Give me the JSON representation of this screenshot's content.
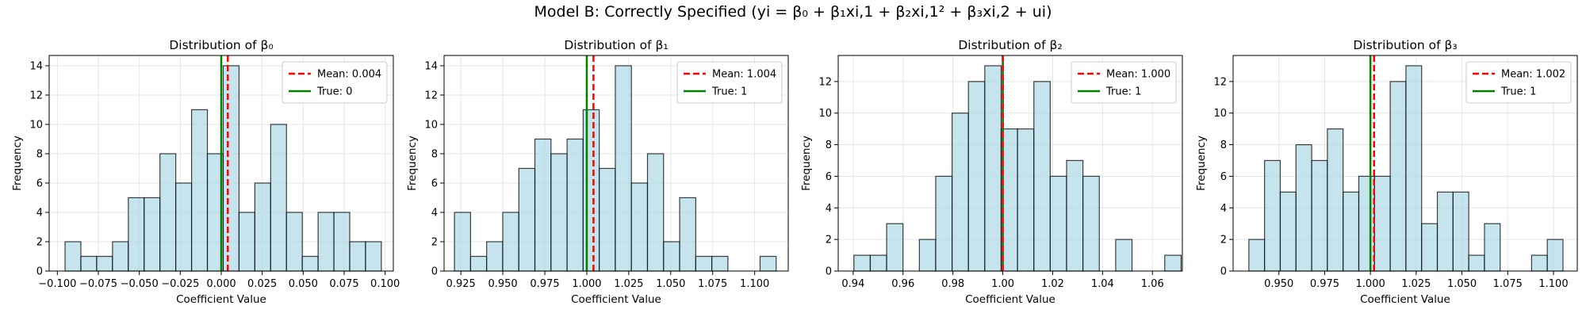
{
  "suptitle": "Model B: Correctly Specified (yi = β₀ + β₁xi,1 + β₂xi,1² + β₃xi,2 + ui)",
  "chart_data": [
    {
      "type": "histogram",
      "title": "Distribution of β₀",
      "xlabel": "Coefficient Value",
      "ylabel": "Frequency",
      "xlim": [
        -0.105,
        0.105
      ],
      "ylim": [
        0,
        14.7
      ],
      "xticks": [
        -0.1,
        -0.075,
        -0.05,
        -0.025,
        0.0,
        0.025,
        0.05,
        0.075,
        0.1
      ],
      "xtick_labels": [
        "−0.100",
        "−0.075",
        "−0.050",
        "−0.025",
        "0.000",
        "0.025",
        "0.050",
        "0.075",
        "0.100"
      ],
      "yticks": [
        0,
        2,
        4,
        6,
        8,
        10,
        12,
        14
      ],
      "bin_start": -0.0953,
      "bin_width": 0.00965,
      "counts": [
        2,
        1,
        1,
        2,
        5,
        5,
        8,
        6,
        11,
        8,
        14,
        4,
        6,
        10,
        4,
        1,
        4,
        4,
        2,
        2
      ],
      "mean": 0.004,
      "true": 0,
      "legend": [
        "Mean: 0.004",
        "True: 0"
      ],
      "legend_position": "top-right",
      "grid": true
    },
    {
      "type": "histogram",
      "title": "Distribution of β₁",
      "xlabel": "Coefficient Value",
      "ylabel": "Frequency",
      "xlim": [
        0.915,
        1.12
      ],
      "ylim": [
        0,
        14.7
      ],
      "xticks": [
        0.925,
        0.95,
        0.975,
        1.0,
        1.025,
        1.05,
        1.075,
        1.1
      ],
      "xtick_labels": [
        "0.925",
        "0.950",
        "0.975",
        "1.000",
        "1.025",
        "1.050",
        "1.075",
        "1.100"
      ],
      "yticks": [
        0,
        2,
        4,
        6,
        8,
        10,
        12,
        14
      ],
      "bin_start": 0.9212,
      "bin_width": 0.00958,
      "counts": [
        4,
        1,
        2,
        4,
        7,
        9,
        8,
        9,
        11,
        7,
        14,
        6,
        8,
        2,
        5,
        1,
        1,
        0,
        0,
        1
      ],
      "mean": 1.004,
      "true": 1,
      "legend": [
        "Mean: 1.004",
        "True: 1"
      ],
      "legend_position": "top-right",
      "grid": true
    },
    {
      "type": "histogram",
      "title": "Distribution of β₂",
      "xlabel": "Coefficient Value",
      "ylabel": "Frequency",
      "xlim": [
        0.934,
        1.072
      ],
      "ylim": [
        0,
        13.65
      ],
      "xticks": [
        0.94,
        0.96,
        0.98,
        1.0,
        1.02,
        1.04,
        1.06
      ],
      "xtick_labels": [
        "0.94",
        "0.96",
        "0.98",
        "1.00",
        "1.02",
        "1.04",
        "1.06"
      ],
      "yticks": [
        0,
        2,
        4,
        6,
        8,
        10,
        12
      ],
      "bin_start": 0.9403,
      "bin_width": 0.00656,
      "counts": [
        1,
        1,
        3,
        0,
        2,
        6,
        10,
        12,
        13,
        9,
        9,
        12,
        6,
        7,
        6,
        0,
        2,
        0,
        0,
        1
      ],
      "mean": 1.0,
      "true": 1,
      "legend": [
        "Mean: 1.000",
        "True: 1"
      ],
      "legend_position": "top-right",
      "grid": true
    },
    {
      "type": "histogram",
      "title": "Distribution of β₃",
      "xlabel": "Coefficient Value",
      "ylabel": "Frequency",
      "xlim": [
        0.925,
        1.113
      ],
      "ylim": [
        0,
        13.65
      ],
      "xticks": [
        0.95,
        0.975,
        1.0,
        1.025,
        1.05,
        1.075,
        1.1
      ],
      "xtick_labels": [
        "0.950",
        "0.975",
        "1.000",
        "1.025",
        "1.050",
        "1.075",
        "1.100"
      ],
      "yticks": [
        0,
        2,
        4,
        6,
        8,
        10,
        12
      ],
      "bin_start": 0.9336,
      "bin_width": 0.00858,
      "counts": [
        2,
        7,
        5,
        8,
        7,
        9,
        5,
        6,
        6,
        12,
        13,
        3,
        5,
        5,
        1,
        3,
        0,
        0,
        1,
        2
      ],
      "mean": 1.002,
      "true": 1,
      "legend": [
        "Mean: 1.002",
        "True: 1"
      ],
      "legend_position": "top-right",
      "grid": true
    }
  ],
  "colors": {
    "bar_fill": "#add8e6",
    "bar_edge": "#000000",
    "mean_line": "#ff0000",
    "true_line": "#008000",
    "grid": "#e6e6e6",
    "text": "#000000"
  }
}
